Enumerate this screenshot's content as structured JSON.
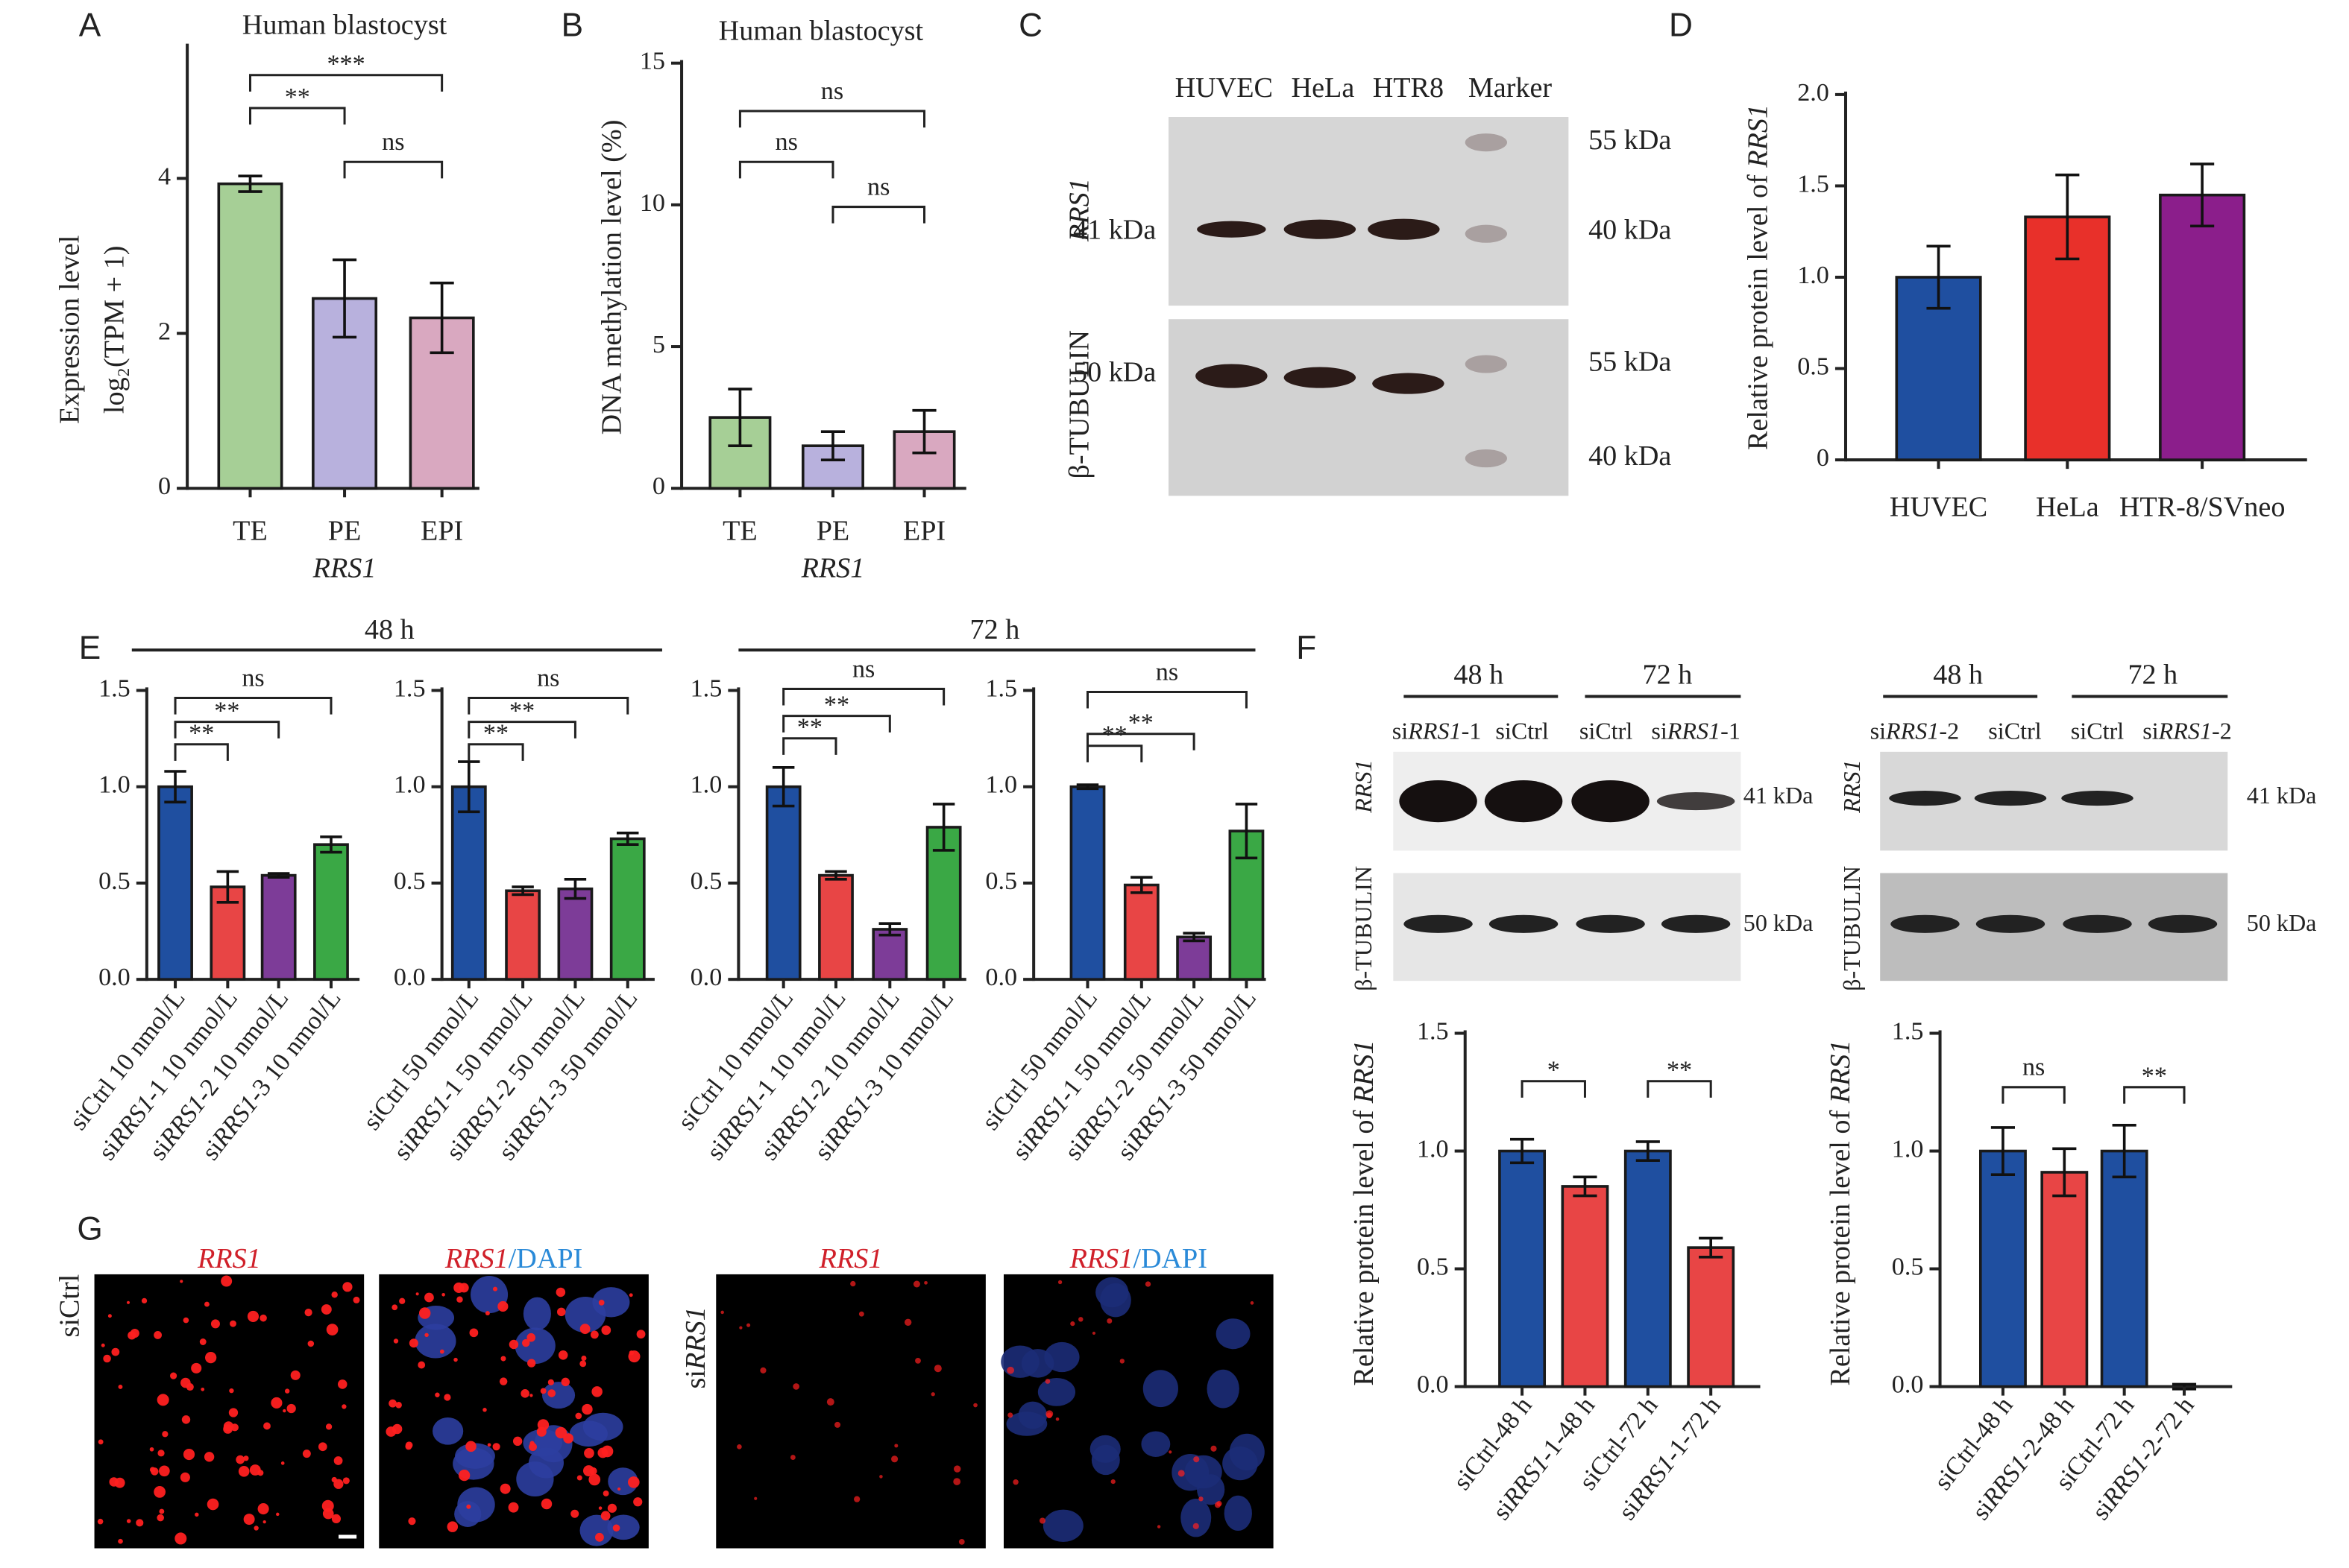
{
  "panel_labels": [
    "A",
    "B",
    "C",
    "D",
    "E",
    "F",
    "G"
  ],
  "chart_data": [
    {
      "type": "bar",
      "title": "Human blastocyst",
      "y_label": [
        "Expression level",
        "log₂(TPM + 1)"
      ],
      "x_label": "RRS1",
      "categories": [
        "TE",
        "PE",
        "EPI"
      ],
      "values": [
        3.93,
        2.45,
        2.2
      ],
      "errors": [
        0.1,
        0.5,
        0.45
      ],
      "colors": [
        "#a6cf96",
        "#b8b1dd",
        "#d9a8c0"
      ],
      "ylim": [
        0,
        5.7
      ],
      "yticks": [
        0,
        2,
        4
      ],
      "significance": [
        {
          "pair": [
            0,
            2
          ],
          "label": "***"
        },
        {
          "pair": [
            0,
            1
          ],
          "label": "**"
        },
        {
          "pair": [
            1,
            2
          ],
          "label": "ns"
        }
      ]
    },
    {
      "type": "bar",
      "title": "Human blastocyst",
      "y_label": [
        "DNA methylation level (%)"
      ],
      "x_label": "RRS1",
      "categories": [
        "TE",
        "PE",
        "EPI"
      ],
      "values": [
        2.5,
        1.5,
        2.0
      ],
      "errors": [
        1.0,
        0.5,
        0.75
      ],
      "colors": [
        "#a6cf96",
        "#b8b1dd",
        "#d9a8c0"
      ],
      "ylim": [
        0,
        15
      ],
      "yticks": [
        0,
        5,
        10,
        15
      ],
      "significance": [
        {
          "pair": [
            0,
            2
          ],
          "label": "ns"
        },
        {
          "pair": [
            0,
            1
          ],
          "label": "ns"
        },
        {
          "pair": [
            1,
            2
          ],
          "label": "ns"
        }
      ]
    },
    {
      "type": "bar",
      "y_label": [
        "Relative protein level of RRS1"
      ],
      "categories": [
        "HUVEC",
        "HeLa",
        "HTR-8/SVneo"
      ],
      "values": [
        1.0,
        1.33,
        1.45
      ],
      "errors": [
        0.17,
        0.23,
        0.17
      ],
      "colors": [
        "#1f4fa0",
        "#e8302a",
        "#8b1e8b"
      ],
      "ylim": [
        0,
        2
      ],
      "yticks": [
        0,
        0.5,
        {
          "value": 1,
          "label": "1.0"
        },
        1.5,
        {
          "value": 2,
          "label": "2.0"
        }
      ]
    },
    {
      "type": "bar",
      "categories": [
        "siCtrl 10 nmol/L",
        "siRRS1-1 10 nmol/L",
        "siRRS1-2 10 nmol/L",
        "siRRS1-3 10 nmol/L"
      ],
      "values": [
        1.0,
        0.48,
        0.54,
        0.7
      ],
      "errors": [
        0.08,
        0.08,
        0.01,
        0.04
      ],
      "colors": [
        "#1f4fa0",
        "#e84545",
        "#7d3c98",
        "#3aa845"
      ],
      "ylim": [
        0,
        1.5
      ],
      "yticks": [
        {
          "value": 0,
          "label": "0.0"
        },
        0.5,
        {
          "value": 1,
          "label": "1.0"
        },
        1.5
      ],
      "significance": [
        {
          "pair": [
            0,
            1
          ],
          "label": "**"
        },
        {
          "pair": [
            0,
            2
          ],
          "label": "**"
        },
        {
          "pair": [
            0,
            3
          ],
          "label": "ns"
        }
      ]
    },
    {
      "type": "bar",
      "categories": [
        "siCtrl 50 nmol/L",
        "siRRS1-1 50 nmol/L",
        "siRRS1-2 50 nmol/L",
        "siRRS1-3 50 nmol/L"
      ],
      "values": [
        1.0,
        0.46,
        0.47,
        0.73
      ],
      "errors": [
        0.13,
        0.02,
        0.05,
        0.03
      ],
      "colors": [
        "#1f4fa0",
        "#e84545",
        "#7d3c98",
        "#3aa845"
      ],
      "ylim": [
        0,
        1.5
      ],
      "yticks": [
        {
          "value": 0,
          "label": "0.0"
        },
        0.5,
        {
          "value": 1,
          "label": "1.0"
        },
        1.5
      ],
      "significance": [
        {
          "pair": [
            0,
            1
          ],
          "label": "**"
        },
        {
          "pair": [
            0,
            2
          ],
          "label": "**"
        },
        {
          "pair": [
            0,
            3
          ],
          "label": "ns"
        }
      ]
    },
    {
      "type": "bar",
      "categories": [
        "siCtrl 10 nmol/L",
        "siRRS1-1 10 nmol/L",
        "siRRS1-2 10 nmol/L",
        "siRRS1-3 10 nmol/L"
      ],
      "values": [
        1.0,
        0.54,
        0.26,
        0.79
      ],
      "errors": [
        0.1,
        0.02,
        0.03,
        0.12
      ],
      "colors": [
        "#1f4fa0",
        "#e84545",
        "#7d3c98",
        "#3aa845"
      ],
      "ylim": [
        0,
        1.5
      ],
      "yticks": [
        {
          "value": 0,
          "label": "0.0"
        },
        0.5,
        {
          "value": 1,
          "label": "1.0"
        },
        1.5
      ],
      "significance": [
        {
          "pair": [
            0,
            1
          ],
          "label": "**"
        },
        {
          "pair": [
            0,
            2
          ],
          "label": "**"
        },
        {
          "pair": [
            0,
            3
          ],
          "label": "ns"
        }
      ]
    },
    {
      "type": "bar",
      "categories": [
        "siCtrl 50 nmol/L",
        "siRRS1-1 50 nmol/L",
        "siRRS1-2 50 nmol/L",
        "siRRS1-3 50 nmol/L"
      ],
      "values": [
        1.0,
        0.49,
        0.22,
        0.77
      ],
      "errors": [
        0.01,
        0.04,
        0.02,
        0.14
      ],
      "colors": [
        "#1f4fa0",
        "#e84545",
        "#7d3c98",
        "#3aa845"
      ],
      "ylim": [
        0,
        1.5
      ],
      "yticks": [
        {
          "value": 0,
          "label": "0.0"
        },
        0.5,
        {
          "value": 1,
          "label": "1.0"
        },
        1.5
      ],
      "significance": [
        {
          "pair": [
            0,
            1
          ],
          "label": "**"
        },
        {
          "pair": [
            0,
            2
          ],
          "label": "**"
        },
        {
          "pair": [
            0,
            3
          ],
          "label": "ns"
        }
      ]
    },
    {
      "type": "bar",
      "y_label": [
        "Relative protein level of RRS1"
      ],
      "categories": [
        "siCtrl-48 h",
        "siRRS1-1-48 h",
        "siCtrl-72 h",
        "siRRS1-1-72 h"
      ],
      "values": [
        1.0,
        0.85,
        1.0,
        0.59
      ],
      "errors": [
        0.05,
        0.04,
        0.04,
        0.04
      ],
      "colors": [
        "#1f4fa0",
        "#e84545",
        "#1f4fa0",
        "#e84545"
      ],
      "ylim": [
        0,
        1.5
      ],
      "yticks": [
        {
          "value": 0,
          "label": "0.0"
        },
        0.5,
        {
          "value": 1,
          "label": "1.0"
        },
        1.5
      ],
      "significance": [
        {
          "pair": [
            0,
            1
          ],
          "label": "*"
        },
        {
          "pair": [
            2,
            3
          ],
          "label": "**"
        }
      ]
    },
    {
      "type": "bar",
      "y_label": [
        "Relative protein level of RRS1"
      ],
      "categories": [
        "siCtrl-48 h",
        "siRRS1-2-48 h",
        "siCtrl-72 h",
        "siRRS1-2-72 h"
      ],
      "values": [
        1.0,
        0.91,
        1.0,
        0.0
      ],
      "errors": [
        0.1,
        0.1,
        0.11,
        0.01
      ],
      "colors": [
        "#1f4fa0",
        "#e84545",
        "#1f4fa0",
        "#e84545"
      ],
      "ylim": [
        0,
        1.5
      ],
      "yticks": [
        {
          "value": 0,
          "label": "0.0"
        },
        0.5,
        {
          "value": 1,
          "label": "1.0"
        },
        1.5
      ],
      "significance": [
        {
          "pair": [
            0,
            1
          ],
          "label": "ns"
        },
        {
          "pair": [
            2,
            3
          ],
          "label": "**"
        }
      ]
    }
  ],
  "e_groups": [
    "48 h",
    "72 h"
  ],
  "blot_c": {
    "lanes": [
      "HUVEC",
      "HeLa",
      "HTR8",
      "Marker"
    ],
    "rows": [
      {
        "protein": "RRS1",
        "size": "41 kDa",
        "markers": [
          "55 kDa",
          "40 kDa"
        ]
      },
      {
        "protein": "β-TUBULIN",
        "size": "50 kDa",
        "markers": [
          "55 kDa",
          "40 kDa"
        ]
      }
    ]
  },
  "blots_f": [
    {
      "groups": [
        "48 h",
        "72 h"
      ],
      "lanes": [
        "siRRS1-1",
        "siCtrl",
        "siCtrl",
        "siRRS1-1"
      ],
      "rows": [
        {
          "protein": "RRS1",
          "size": "41 kDa"
        },
        {
          "protein": "β-TUBULIN",
          "size": "50 kDa"
        }
      ]
    },
    {
      "groups": [
        "48 h",
        "72 h"
      ],
      "lanes": [
        "siRRS1-2",
        "siCtrl",
        "siCtrl",
        "siRRS1-2"
      ],
      "rows": [
        {
          "protein": "RRS1",
          "size": "41 kDa"
        },
        {
          "protein": "β-TUBULIN",
          "size": "50 kDa"
        }
      ]
    }
  ],
  "images_g": {
    "columns": [
      "RRS1",
      "RRS1/DAPI",
      "RRS1",
      "RRS1/DAPI"
    ],
    "rows": [
      "siCtrl",
      "siRRS1"
    ]
  }
}
